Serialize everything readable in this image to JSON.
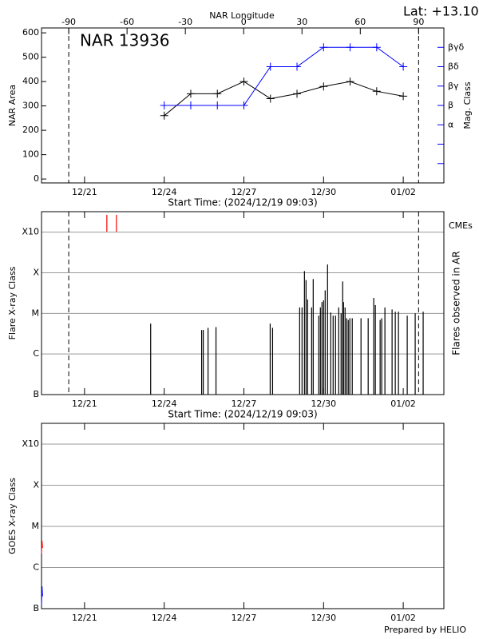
{
  "chart_data": [
    {
      "type": "line",
      "title": "NAR 13936",
      "annotation": "Lat: +13.10",
      "xlabel": "Start Time: (2024/12/19 09:03)",
      "ylabel": "NAR Area",
      "y2label": "Mag. Class",
      "x2label": "NAR Longitude",
      "xlim": [
        0,
        15.15
      ],
      "xticks": [
        {
          "value": 1.62,
          "label": "12/21"
        },
        {
          "value": 4.62,
          "label": "12/24"
        },
        {
          "value": 7.62,
          "label": "12/27"
        },
        {
          "value": 10.62,
          "label": "12/30"
        },
        {
          "value": 13.62,
          "label": "01/02"
        }
      ],
      "x2lim": [
        -104,
        103
      ],
      "x2ticks": [
        -90,
        -60,
        -30,
        0,
        30,
        60,
        90
      ],
      "limb_lines": [
        -90,
        90
      ],
      "ylim": [
        -16,
        620
      ],
      "yticks": [
        0,
        100,
        200,
        300,
        400,
        500,
        600
      ],
      "y2lim": [
        0,
        8
      ],
      "y2color": "#0000ff",
      "y2ticks": [
        {
          "value": 3,
          "label": "α"
        },
        {
          "value": 4,
          "label": "β"
        },
        {
          "value": 5,
          "label": "βγ"
        },
        {
          "value": 6,
          "label": "βδ"
        },
        {
          "value": 7,
          "label": "βγδ"
        }
      ],
      "y2minor_ticks": [
        1,
        2
      ],
      "marker": "plus",
      "x": [
        4.62,
        5.62,
        6.62,
        7.62,
        8.62,
        9.62,
        10.62,
        11.62,
        12.62,
        13.62
      ],
      "series": [
        {
          "color": "#000000",
          "values": [
            260,
            350,
            350,
            400,
            330,
            350,
            380,
            400,
            360,
            340
          ]
        },
        {
          "color": "#0000ff",
          "axis": "y2",
          "values": [
            4,
            4,
            4,
            4,
            6,
            6,
            7,
            7,
            7,
            6
          ]
        }
      ]
    },
    {
      "type": "spike",
      "log": true,
      "grid": true,
      "xlabel": "Start Time: (2024/12/19 09:03)",
      "ylabel": "Flare X-ray Class",
      "y2label": "Flares observed in AR",
      "xlim": [
        0,
        15.15
      ],
      "xticks": [
        {
          "value": 1.62,
          "label": "12/21"
        },
        {
          "value": 4.62,
          "label": "12/24"
        },
        {
          "value": 7.62,
          "label": "12/27"
        },
        {
          "value": 10.62,
          "label": "12/30"
        },
        {
          "value": 13.62,
          "label": "01/02"
        }
      ],
      "x2lim": [
        -104,
        103
      ],
      "limb_lines": [
        -90,
        90
      ],
      "ylim": [
        1e-07,
        0.0032
      ],
      "yticks": [
        {
          "value": 1e-07,
          "label": "B"
        },
        {
          "value": 1e-06,
          "label": "C"
        },
        {
          "value": 1e-05,
          "label": "M"
        },
        {
          "value": 0.0001,
          "label": "X"
        },
        {
          "value": 0.001,
          "label": "X10"
        }
      ],
      "color": "#000000",
      "x": [
        4.11,
        6.03,
        6.09,
        6.27,
        6.57,
        8.61,
        8.7,
        9.72,
        9.81,
        9.9,
        9.96,
        10.02,
        10.17,
        10.23,
        10.44,
        10.5,
        10.56,
        10.62,
        10.68,
        10.77,
        10.89,
        10.98,
        11.07,
        11.19,
        11.28,
        11.34,
        11.37,
        11.43,
        11.49,
        11.55,
        11.61,
        11.7,
        12.03,
        12.3,
        12.51,
        12.57,
        12.75,
        12.81,
        12.93,
        13.2,
        13.32,
        13.44,
        13.77,
        14.07,
        14.37
      ],
      "values": [
        5.6e-06,
        3.9e-06,
        3.9e-06,
        4.4e-06,
        4.6e-06,
        5.6e-06,
        4.4e-06,
        1.4e-05,
        1.4e-05,
        0.00011,
        6.6e-05,
        2.2e-05,
        1.4e-05,
        7e-05,
        8.8e-06,
        1.4e-05,
        1.9e-05,
        2.1e-05,
        3.7e-05,
        0.00016,
        1.05e-05,
        8.8e-06,
        8.8e-06,
        1.4e-05,
        1e-05,
        6.1e-05,
        1.9e-05,
        1.4e-05,
        7.6e-06,
        6.9e-06,
        7.6e-06,
        7.6e-06,
        7.6e-06,
        7.6e-06,
        2.4e-05,
        1.6e-05,
        6.9e-06,
        7.6e-06,
        1.4e-05,
        1.25e-05,
        1.1e-05,
        1.1e-05,
        8.8e-06,
        1e-05,
        1.1e-05
      ],
      "cme_label": "CMEs",
      "cme_color": "#ff0000",
      "cme_times": [
        2.46,
        2.82
      ]
    },
    {
      "type": "line",
      "log": true,
      "grid": true,
      "ylabel": "GOES X-ray Class",
      "xlim": [
        0,
        15.15
      ],
      "xticks": [
        {
          "value": 1.62,
          "label": "12/21"
        },
        {
          "value": 4.62,
          "label": "12/24"
        },
        {
          "value": 7.62,
          "label": "12/27"
        },
        {
          "value": 10.62,
          "label": "12/30"
        },
        {
          "value": 13.62,
          "label": "01/02"
        }
      ],
      "ylim": [
        1e-07,
        0.0032
      ],
      "yticks": [
        {
          "value": 1e-07,
          "label": "B"
        },
        {
          "value": 1e-06,
          "label": "C"
        },
        {
          "value": 1e-05,
          "label": "M"
        },
        {
          "value": 0.0001,
          "label": "X"
        },
        {
          "value": 0.001,
          "label": "X10"
        }
      ],
      "series": [
        {
          "color": "#ff0000",
          "x": [
            0,
            0.02,
            0.04
          ],
          "values": [
            2.2e-06,
            4.5e-06,
            3e-06
          ]
        },
        {
          "color": "#0000ff",
          "x": [
            0,
            0.02,
            0.04
          ],
          "values": [
            1.2e-07,
            3.5e-07,
            2e-07
          ]
        }
      ]
    }
  ],
  "footer": "Prepared by HELIO"
}
